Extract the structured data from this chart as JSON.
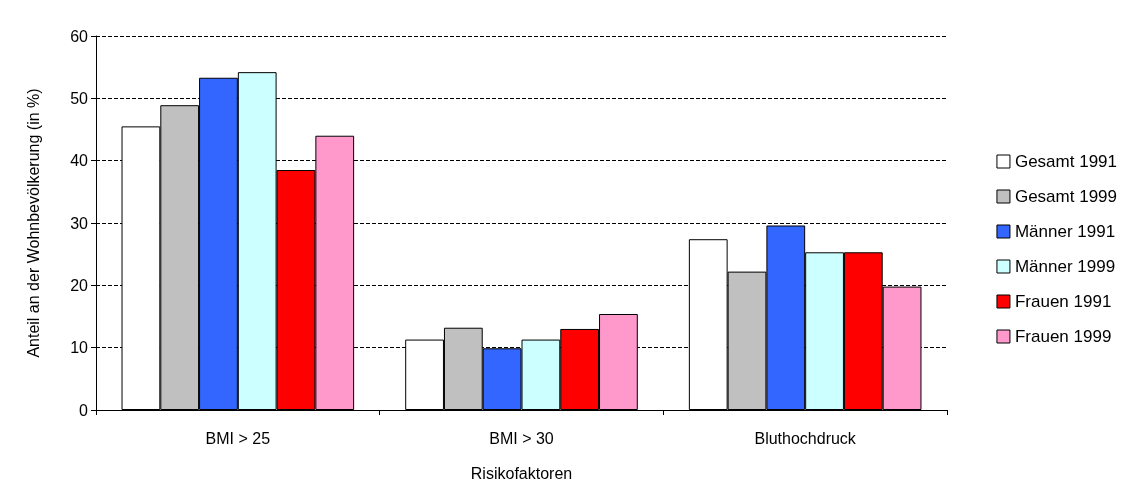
{
  "chart_data": {
    "type": "bar",
    "xlabel": "Risikofaktoren",
    "ylabel": "Anteil an der Wohnbevölkerung (in %)",
    "categories": [
      "BMI > 25",
      "BMI > 30",
      "Bluthochdruck"
    ],
    "series": [
      {
        "name": "Gesamt 1991",
        "color": "#ffffff",
        "values": [
          45.5,
          11.3,
          27.4
        ]
      },
      {
        "name": "Gesamt 1999",
        "color": "#c0c0c0",
        "values": [
          48.9,
          13.2,
          22.2
        ]
      },
      {
        "name": "Männer 1991",
        "color": "#3366ff",
        "values": [
          53.3,
          9.9,
          29.6
        ]
      },
      {
        "name": "Männer 1999",
        "color": "#ccffff",
        "values": [
          54.2,
          11.3,
          25.3
        ]
      },
      {
        "name": "Frauen 1991",
        "color": "#ff0000",
        "values": [
          38.5,
          13,
          25.3
        ]
      },
      {
        "name": "Frauen 1999",
        "color": "#ff99cc",
        "values": [
          44,
          15.4,
          19.8
        ]
      }
    ],
    "ylim": [
      0,
      60
    ],
    "yticks": [
      0,
      10,
      20,
      30,
      40,
      50,
      60
    ],
    "grid": "y",
    "legend": "right"
  }
}
